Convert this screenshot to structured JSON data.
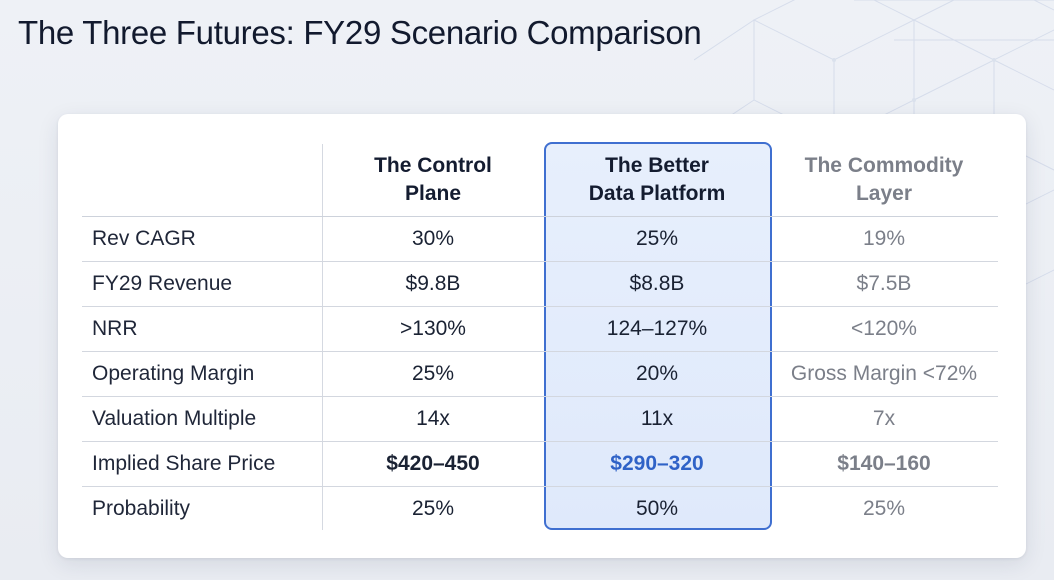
{
  "title": "The Three Futures: FY29 Scenario Comparison",
  "colors": {
    "accent": "#3f6fd0",
    "accent_fill": "#e2ebfb",
    "muted": "#7b7f89",
    "highlight_text": "#2f62c7"
  },
  "table": {
    "columns": [
      {
        "line1": "The Control",
        "line2": "Plane"
      },
      {
        "line1": "The Better",
        "line2": "Data Platform"
      },
      {
        "line1": "The Commodity",
        "line2": "Layer"
      }
    ],
    "rows": [
      {
        "label": "Rev CAGR",
        "values": [
          "30%",
          "25%",
          "19%"
        ]
      },
      {
        "label": "FY29 Revenue",
        "values": [
          "$9.8B",
          "$8.8B",
          "$7.5B"
        ]
      },
      {
        "label": "NRR",
        "values": [
          ">130%",
          "124–127%",
          "<120%"
        ]
      },
      {
        "label": "Operating Margin",
        "values": [
          "25%",
          "20%",
          "Gross Margin <72%"
        ]
      },
      {
        "label": "Valuation Multiple",
        "values": [
          "14x",
          "11x",
          "7x"
        ]
      },
      {
        "label": "Implied Share Price",
        "values": [
          "$420–450",
          "$290–320",
          "$140–160"
        ]
      },
      {
        "label": "Probability",
        "values": [
          "25%",
          "50%",
          "25%"
        ]
      }
    ]
  }
}
